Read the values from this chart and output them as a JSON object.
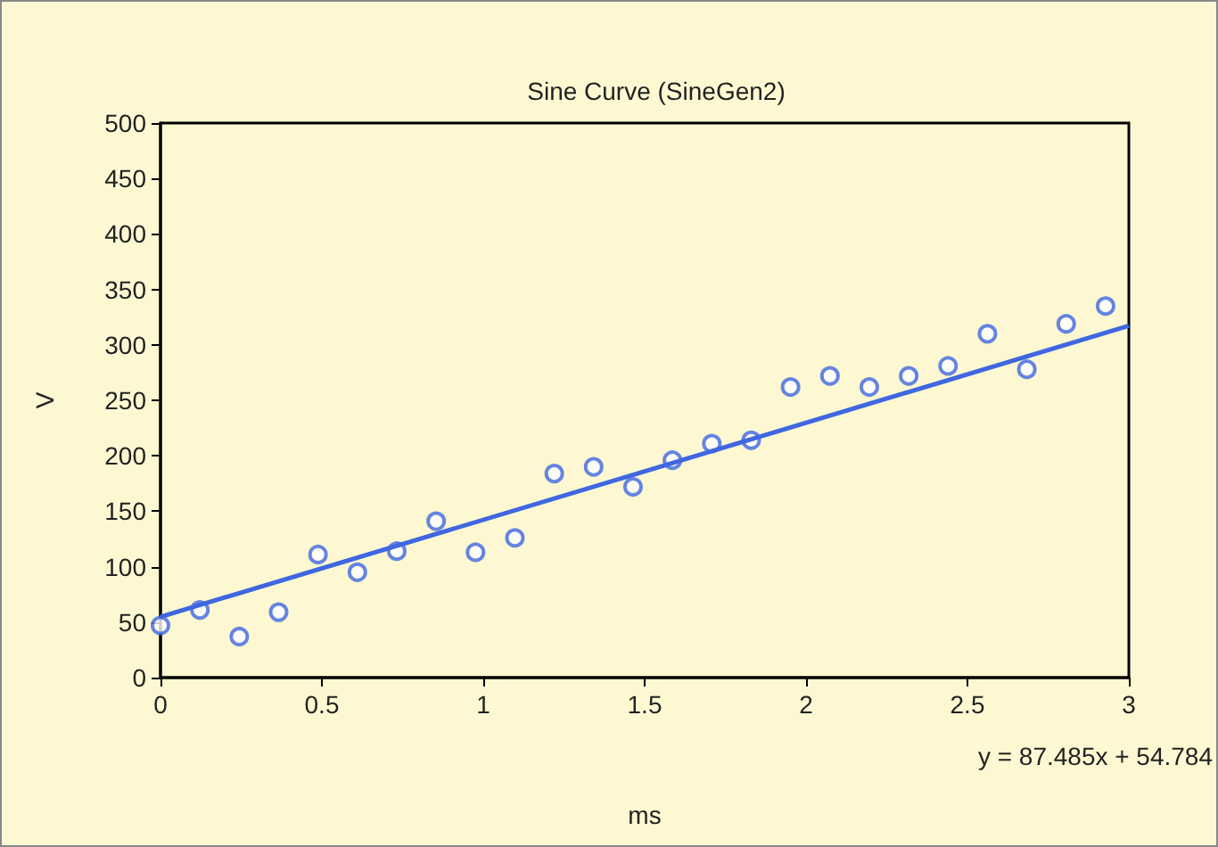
{
  "chart_data": {
    "type": "scatter",
    "title": "Sine Curve (SineGen2)",
    "xlabel": "ms",
    "ylabel": "V",
    "xlim": [
      0,
      3
    ],
    "xticks": [
      0,
      0.5,
      1,
      1.5,
      2,
      2.5,
      3
    ],
    "ylim": [
      0,
      500
    ],
    "yticks": [
      0,
      50,
      100,
      150,
      200,
      250,
      300,
      350,
      400,
      450,
      500
    ],
    "grid": false,
    "series": [
      {
        "color": "#3f67e0",
        "marker": "circle",
        "x": [
          0,
          0.122,
          0.244,
          0.366,
          0.488,
          0.61,
          0.732,
          0.854,
          0.976,
          1.098,
          1.22,
          1.342,
          1.464,
          1.586,
          1.708,
          1.83,
          1.952,
          2.074,
          2.196,
          2.318,
          2.44,
          2.562,
          2.684,
          2.806,
          2.928
        ],
        "values": [
          47,
          61,
          37,
          59,
          111,
          95,
          114,
          141,
          113,
          126,
          184,
          190,
          172,
          196,
          211,
          214,
          262,
          272,
          262,
          272,
          281,
          310,
          278,
          319,
          335
        ]
      },
      {
        "type": "line",
        "color": "#3f67e0",
        "x": [
          0,
          3
        ],
        "values": [
          54.8,
          317.2
        ]
      }
    ],
    "annotations": [
      "y = 87.485x + 54.784"
    ]
  }
}
